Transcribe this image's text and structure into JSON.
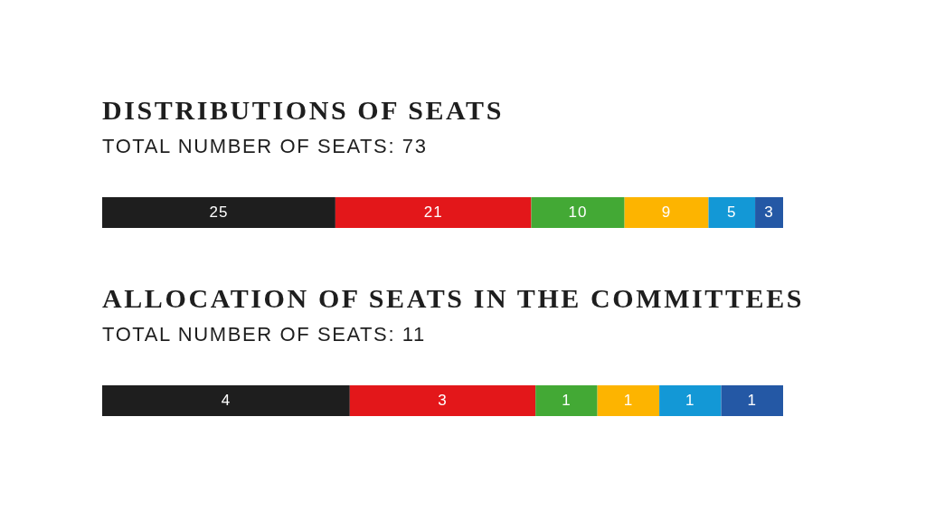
{
  "chart_data": [
    {
      "type": "bar",
      "orientation": "horizontal",
      "stacked": true,
      "title": "DISTRIBUTIONS OF SEATS",
      "subtitle": "TOTAL NUMBER OF SEATS: 73",
      "categories": [
        null
      ],
      "series": [
        {
          "color": "#1e1e1e",
          "values": [
            25
          ]
        },
        {
          "color": "#e3171a",
          "values": [
            21
          ]
        },
        {
          "color": "#43a935",
          "values": [
            10
          ]
        },
        {
          "color": "#fdb400",
          "values": [
            9
          ]
        },
        {
          "color": "#1398d6",
          "values": [
            5
          ]
        },
        {
          "color": "#2458a5",
          "values": [
            3
          ]
        }
      ],
      "xlim": [
        0,
        73
      ],
      "data_labels": true,
      "tick_labels": false
    },
    {
      "type": "bar",
      "orientation": "horizontal",
      "stacked": true,
      "title": "ALLOCATION OF SEATS IN THE COMMITTEES",
      "subtitle": "TOTAL NUMBER OF SEATS: 11",
      "categories": [
        null
      ],
      "series": [
        {
          "color": "#1e1e1e",
          "values": [
            4
          ]
        },
        {
          "color": "#e3171a",
          "values": [
            3
          ]
        },
        {
          "color": "#43a935",
          "values": [
            1
          ]
        },
        {
          "color": "#fdb400",
          "values": [
            1
          ]
        },
        {
          "color": "#1398d6",
          "values": [
            1
          ]
        },
        {
          "color": "#2458a5",
          "values": [
            1
          ]
        }
      ],
      "xlim": [
        0,
        11
      ],
      "data_labels": true,
      "tick_labels": false
    }
  ]
}
